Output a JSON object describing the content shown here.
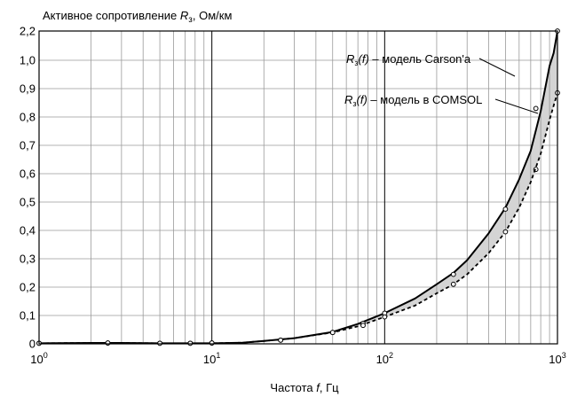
{
  "chart_data": {
    "type": "line",
    "title": {
      "prefix": "Активное сопротивление ",
      "symbol": "R",
      "subscript": "з",
      "suffix": ", Ом/км"
    },
    "xlabel": {
      "prefix": "Частота ",
      "symbol": "f",
      "suffix": ", Гц"
    },
    "x_scale": "log",
    "x_range": [
      1,
      1000
    ],
    "x_ticks": [
      {
        "value": 1,
        "base": "10",
        "exp": "0"
      },
      {
        "value": 10,
        "base": "10",
        "exp": "1"
      },
      {
        "value": 100,
        "base": "10",
        "exp": "2"
      },
      {
        "value": 1000,
        "base": "10",
        "exp": "3"
      }
    ],
    "y_scale": "piecewise-linear",
    "y_range": [
      0,
      2.2
    ],
    "y_breaks": [
      0,
      1.0,
      2.2
    ],
    "y_ticks": [
      {
        "value": 0,
        "label": "0"
      },
      {
        "value": 0.1,
        "label": "0,1"
      },
      {
        "value": 0.2,
        "label": "0,2"
      },
      {
        "value": 0.3,
        "label": "0,3"
      },
      {
        "value": 0.4,
        "label": "0,4"
      },
      {
        "value": 0.5,
        "label": "0,5"
      },
      {
        "value": 0.6,
        "label": "0,6"
      },
      {
        "value": 0.7,
        "label": "0,7"
      },
      {
        "value": 0.8,
        "label": "0,8"
      },
      {
        "value": 0.9,
        "label": "0,9"
      },
      {
        "value": 1.0,
        "label": "1,0"
      },
      {
        "value": 2.2,
        "label": "2,2"
      }
    ],
    "grid": true,
    "shaded_between_series": true,
    "series": [
      {
        "name": {
          "symbol": "R",
          "subscript": "з",
          "fn": "(f)",
          "text": " – модель Carson'a"
        },
        "style": "solid",
        "curve_x": [
          1,
          2,
          3,
          5,
          7,
          10,
          15,
          20,
          30,
          50,
          70,
          100,
          150,
          200,
          250,
          300,
          400,
          500,
          600,
          700,
          800,
          900,
          950,
          1000
        ],
        "curve_y": [
          0.002,
          0.003,
          0.003,
          0.002,
          0.002,
          0.002,
          0.004,
          0.01,
          0.02,
          0.042,
          0.07,
          0.108,
          0.16,
          0.21,
          0.25,
          0.295,
          0.39,
          0.48,
          0.58,
          0.68,
          0.82,
          0.98,
          1.3,
          2.2
        ],
        "markers_x": [
          1,
          2.5,
          5,
          7.5,
          10,
          25,
          50,
          75,
          100,
          250,
          500,
          750,
          1000
        ],
        "markers_y": [
          0.002,
          0.003,
          0.002,
          0.002,
          0.003,
          0.013,
          0.04,
          0.072,
          0.108,
          0.245,
          0.475,
          0.615,
          2.2
        ]
      },
      {
        "name": {
          "symbol": "R",
          "subscript": "з",
          "fn": "(f)",
          "text": " – модель в COMSOL"
        },
        "style": "dashed",
        "curve_x": [
          1,
          2,
          3,
          5,
          7,
          10,
          15,
          20,
          30,
          50,
          70,
          100,
          150,
          200,
          250,
          300,
          400,
          500,
          600,
          700,
          800,
          900,
          950,
          1000
        ],
        "curve_y": [
          0.002,
          0.003,
          0.003,
          0.002,
          0.002,
          0.002,
          0.004,
          0.01,
          0.02,
          0.04,
          0.062,
          0.095,
          0.135,
          0.178,
          0.21,
          0.245,
          0.32,
          0.395,
          0.48,
          0.57,
          0.67,
          0.79,
          0.84,
          0.885
        ],
        "markers_x": [
          1,
          2.5,
          5,
          7.5,
          10,
          25,
          50,
          75,
          100,
          250,
          500,
          750,
          1000
        ],
        "markers_y": [
          0.002,
          0.003,
          0.002,
          0.002,
          0.003,
          0.013,
          0.04,
          0.065,
          0.095,
          0.21,
          0.395,
          0.83,
          0.885
        ]
      }
    ]
  }
}
